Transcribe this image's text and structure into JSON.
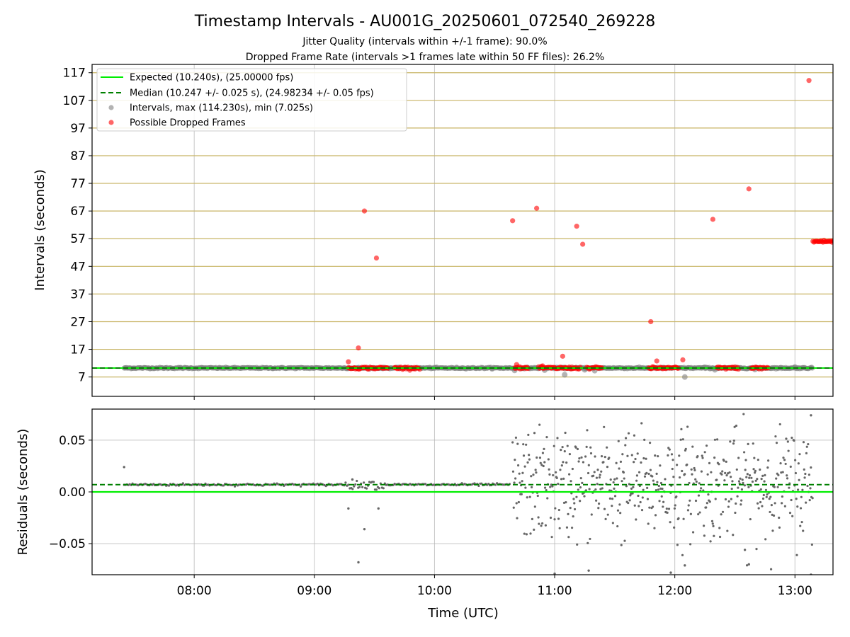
{
  "title": "Timestamp Intervals - AU001G_20250601_072540_269228",
  "subtitle_1": "Jitter Quality (intervals within +/-1 frame): 90.0%",
  "subtitle_2": "Dropped Frame Rate (intervals >1 frames late within 50 FF files): 26.2%",
  "colors": {
    "expected": "#00ee00",
    "median": "#008000",
    "intervals": "#808080",
    "dropped": "#ff0000",
    "hline": "#c8b464",
    "grid": "#b0b0b0"
  },
  "chart_data": [
    {
      "type": "scatter",
      "ylabel": "Intervals (seconds)",
      "xlabel": "",
      "ylim": [
        0,
        120
      ],
      "yticks": [
        7,
        17,
        27,
        37,
        47,
        57,
        67,
        77,
        87,
        97,
        107,
        117
      ],
      "xlim": [
        "07:09",
        "13:19"
      ],
      "xticks": [
        "08:00",
        "09:00",
        "10:00",
        "11:00",
        "12:00",
        "13:00"
      ],
      "grid": true,
      "legend_position": "top-left",
      "legend": [
        "Expected (10.240s), (25.00000 fps)",
        "Median (10.247 +/- 0.025 s), (24.98234 +/- 0.05 fps)",
        "Intervals, max (114.230s), min (7.025s)",
        "Possible Dropped Frames"
      ],
      "expected_interval": 10.24,
      "median_interval": 10.247,
      "intervals_band": [
        "07:25",
        "13:09"
      ],
      "intervals_outliers": [
        {
          "x": "10:40",
          "y": 9.4
        },
        {
          "x": "10:55",
          "y": 9.5
        },
        {
          "x": "11:05",
          "y": 7.8
        },
        {
          "x": "11:15",
          "y": 9.6
        },
        {
          "x": "11:20",
          "y": 9.3
        },
        {
          "x": "12:05",
          "y": 7.0
        },
        {
          "x": "12:15",
          "y": 10.5
        },
        {
          "x": "12:20",
          "y": 9.6
        },
        {
          "x": "12:40",
          "y": 9.7
        },
        {
          "x": "13:00",
          "y": 10.6
        }
      ],
      "dropped_frame_clusters": [
        {
          "start": "09:17",
          "end": "09:37"
        },
        {
          "start": "09:40",
          "end": "09:53"
        },
        {
          "start": "10:40",
          "end": "10:47"
        },
        {
          "start": "10:52",
          "end": "11:13"
        },
        {
          "start": "11:16",
          "end": "11:24"
        },
        {
          "start": "11:47",
          "end": "12:02"
        },
        {
          "start": "12:21",
          "end": "12:32"
        },
        {
          "start": "12:38",
          "end": "12:47"
        }
      ],
      "dropped_frames": [
        {
          "x": "09:17",
          "y": 12.5
        },
        {
          "x": "09:22",
          "y": 17.5
        },
        {
          "x": "09:25",
          "y": 67.0
        },
        {
          "x": "09:31",
          "y": 50.0
        },
        {
          "x": "10:39",
          "y": 63.5
        },
        {
          "x": "10:41",
          "y": 11.5
        },
        {
          "x": "10:51",
          "y": 68.0
        },
        {
          "x": "10:54",
          "y": 11.0
        },
        {
          "x": "11:04",
          "y": 14.5
        },
        {
          "x": "11:11",
          "y": 61.5
        },
        {
          "x": "11:14",
          "y": 55.0
        },
        {
          "x": "11:48",
          "y": 27.0
        },
        {
          "x": "11:51",
          "y": 12.8
        },
        {
          "x": "12:04",
          "y": 13.2
        },
        {
          "x": "12:19",
          "y": 64.0
        },
        {
          "x": "12:37",
          "y": 75.0
        },
        {
          "x": "13:07",
          "y": 114.2
        }
      ],
      "dropped_frames_tail": {
        "start": "13:09",
        "end": "13:19",
        "y": 56.0
      }
    },
    {
      "type": "scatter",
      "ylabel": "Residuals (seconds)",
      "xlabel": "Time (UTC)",
      "ylim": [
        -0.08,
        0.08
      ],
      "yticks": [
        -0.05,
        0.0,
        0.05
      ],
      "ytick_labels": [
        "−0.05",
        "0.00",
        "0.05"
      ],
      "xlim": [
        "07:09",
        "13:19"
      ],
      "xticks": [
        "08:00",
        "09:00",
        "10:00",
        "11:00",
        "12:00",
        "13:00"
      ],
      "grid": true,
      "expected_residual": 0.0,
      "median_residual": 0.007,
      "stable_section": {
        "start": "07:25",
        "end": "10:38",
        "y": 0.007
      },
      "noisy_section": {
        "start": "10:39",
        "end": "13:09",
        "y_min": -0.08,
        "y_max": 0.08
      },
      "notable_points": [
        {
          "x": "07:25",
          "y": 0.024
        },
        {
          "x": "09:17",
          "y": -0.016
        },
        {
          "x": "09:19",
          "y": 0.012
        },
        {
          "x": "09:22",
          "y": -0.068
        },
        {
          "x": "09:25",
          "y": -0.036
        },
        {
          "x": "09:32",
          "y": -0.016
        },
        {
          "x": "11:00",
          "y": -0.079
        },
        {
          "x": "11:17",
          "y": -0.076
        },
        {
          "x": "11:58",
          "y": -0.078
        },
        {
          "x": "12:05",
          "y": -0.071
        },
        {
          "x": "12:35",
          "y": -0.056
        },
        {
          "x": "12:37",
          "y": -0.07
        },
        {
          "x": "13:08",
          "y": 0.074
        },
        {
          "x": "13:08",
          "y": -0.08
        }
      ]
    }
  ]
}
